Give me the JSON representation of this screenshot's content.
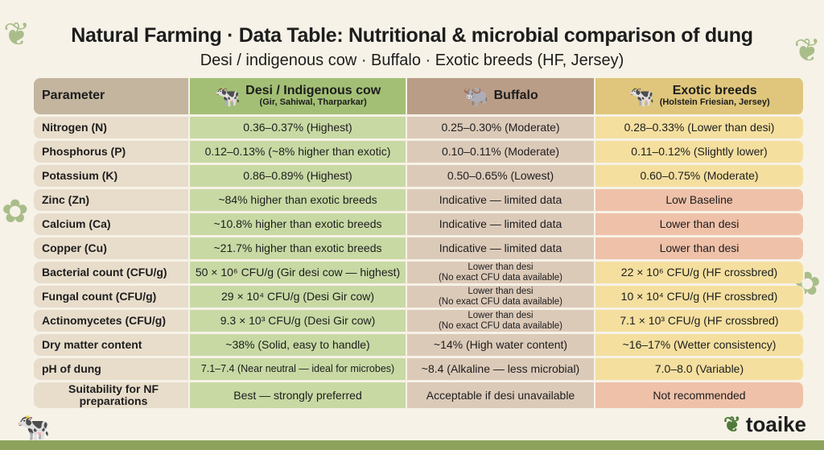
{
  "title": "Natural Farming · Data Table: Nutritional & microbial comparison of dung",
  "subtitle": "Desi / indigenous cow · Buffalo · Exotic breeds (HF, Jersey)",
  "header": {
    "param": "Parameter",
    "desi": "Desi / Indigenous cow",
    "desi_sub": "(Gir, Sahiwal, Tharparkar)",
    "buffalo": "Buffalo",
    "exotic": "Exotic breeds",
    "exotic_sub": "(Holstein Friesian, Jersey)"
  },
  "rows": [
    {
      "param": "Nitrogen (N)",
      "desi": "0.36–0.37% (Highest)",
      "buffalo": "0.25–0.30% (Moderate)",
      "exotic": "0.28–0.33% (Lower than desi)"
    },
    {
      "param": "Phosphorus (P)",
      "desi": "0.12–0.13% (~8% higher than exotic)",
      "buffalo": "0.10–0.11% (Moderate)",
      "exotic": "0.11–0.12% (Slightly lower)"
    },
    {
      "param": "Potassium (K)",
      "desi": "0.86–0.89% (Highest)",
      "buffalo": "0.50–0.65% (Lowest)",
      "exotic": "0.60–0.75% (Moderate)"
    },
    {
      "param": "Zinc (Zn)",
      "desi": "~84% higher than exotic breeds",
      "buffalo": "Indicative — limited data",
      "exotic": "Low Baseline"
    },
    {
      "param": "Calcium (Ca)",
      "desi": "~10.8% higher than exotic breeds",
      "buffalo": "Indicative — limited data",
      "exotic": "Lower than desi"
    },
    {
      "param": "Copper (Cu)",
      "desi": "~21.7% higher than exotic breeds",
      "buffalo": "Indicative — limited data",
      "exotic": "Lower than desi"
    },
    {
      "param": "Bacterial count (CFU/g)",
      "desi": "50 × 10⁶ CFU/g (Gir desi cow — highest)",
      "buffalo": "Lower than desi",
      "buffalo_note": "(No exact CFU data available)",
      "exotic": "22 × 10⁶ CFU/g (HF crossbred)"
    },
    {
      "param": "Fungal count (CFU/g)",
      "desi": "29 × 10⁴ CFU/g (Desi Gir cow)",
      "buffalo": "Lower than desi",
      "buffalo_note": "(No exact CFU data available)",
      "exotic": "10 × 10⁴ CFU/g (HF crossbred)"
    },
    {
      "param": "Actinomycetes (CFU/g)",
      "desi": "9.3 × 10³ CFU/g (Desi Gir cow)",
      "buffalo": "Lower than desi",
      "buffalo_note": "(No exact CFU data available)",
      "exotic": "7.1 × 10³ CFU/g (HF crossbred)"
    },
    {
      "param": "Dry matter content",
      "desi": "~38% (Solid, easy to handle)",
      "buffalo": "~14% (High water content)",
      "exotic": "~16–17% (Wetter consistency)"
    },
    {
      "param": "pH of dung",
      "desi": "7.1–7.4 (Near neutral — ideal for microbes)",
      "buffalo": "~8.4 (Alkaline — less microbial)",
      "exotic": "7.0–8.0 (Variable)"
    },
    {
      "param": "Suitability for NF preparations",
      "desi": "Best — strongly preferred",
      "buffalo": "Acceptable if desi unavailable",
      "exotic": "Not recommended"
    }
  ],
  "logo": "toaike",
  "colors": {
    "desi": "#c8d9a4",
    "buffalo": "#dccab9",
    "exotic": "#f4df9f",
    "warning": "#efc1a9"
  }
}
